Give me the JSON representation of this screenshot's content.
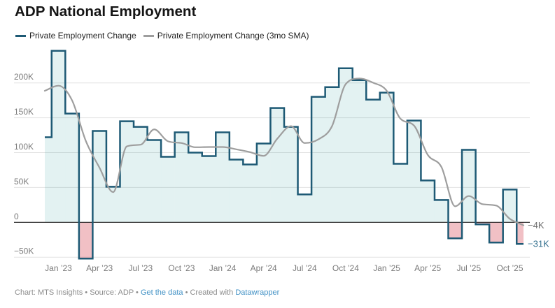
{
  "header": {
    "title": "ADP National Employment"
  },
  "legend": {
    "items": [
      {
        "label": "Private Employment Change",
        "color": "#1e5a75"
      },
      {
        "label": "Private Employment Change (3mo SMA)",
        "color": "#9e9e9e"
      }
    ]
  },
  "footer": {
    "chart_credit": "Chart: MTS Insights",
    "separator1": "•",
    "source": "Source: ADP",
    "separator2": "•",
    "get_data_link": "Get the data",
    "separator3": "•",
    "created_with": "Created with",
    "datawrapper_link": "Datawrapper"
  },
  "chart_data": {
    "type": "area",
    "subtype": "step-area with moving-average line",
    "title": "ADP National Employment",
    "unit": "thousands of jobs",
    "x": [
      "Dec '22",
      "Jan '23",
      "Feb '23",
      "Mar '23",
      "Apr '23",
      "May '23",
      "Jun '23",
      "Jul '23",
      "Aug '23",
      "Sep '23",
      "Oct '23",
      "Nov '23",
      "Dec '23",
      "Jan '24",
      "Feb '24",
      "Mar '24",
      "Apr '24",
      "May '24",
      "Jun '24",
      "Jul '24",
      "Aug '24",
      "Sep '24",
      "Oct '24",
      "Nov '24",
      "Dec '24",
      "Jan '25",
      "Feb '25",
      "Mar '25",
      "Apr '25",
      "May '25",
      "Jun '25",
      "Jul '25",
      "Aug '25",
      "Sep '25",
      "Oct '25",
      "Nov '25"
    ],
    "series": [
      {
        "name": "Private Employment Change",
        "type": "step-area",
        "color": "#1e5a75",
        "fill_positive": "rgba(30,150,150,0.125)",
        "fill_negative": "rgba(205,30,45,0.28)",
        "values": [
          122,
          246,
          156,
          -52,
          131,
          51,
          145,
          137,
          118,
          94,
          129,
          100,
          95,
          129,
          90,
          83,
          113,
          164,
          137,
          40,
          180,
          194,
          221,
          204,
          176,
          186,
          84,
          146,
          60,
          32,
          -23,
          104,
          -3,
          -29,
          47,
          -31
        ]
      },
      {
        "name": "Private Employment Change (3mo SMA)",
        "type": "line",
        "color": "#9e9e9e",
        "values": [
          188.7,
          196.0,
          174.7,
          116.7,
          78.3,
          43.3,
          109.0,
          111.3,
          133.3,
          116.3,
          113.7,
          107.7,
          108.0,
          108.0,
          104.7,
          100.7,
          95.3,
          120.0,
          138.0,
          113.7,
          119.0,
          138.0,
          198.3,
          206.3,
          200.3,
          188.7,
          148.7,
          138.7,
          96.7,
          79.3,
          23.0,
          37.7,
          26.0,
          24.0,
          5.0,
          -4.3
        ]
      }
    ],
    "y_ticks": [
      {
        "value": 200,
        "label": "200K"
      },
      {
        "value": 150,
        "label": "150K"
      },
      {
        "value": 100,
        "label": "100K"
      },
      {
        "value": 50,
        "label": "50K"
      },
      {
        "value": 0,
        "label": "0"
      },
      {
        "value": -50,
        "label": "−50K"
      }
    ],
    "x_ticks": [
      {
        "index": 1,
        "label": "Jan ’23"
      },
      {
        "index": 4,
        "label": "Apr ’23"
      },
      {
        "index": 7,
        "label": "Jul ’23"
      },
      {
        "index": 10,
        "label": "Oct ’23"
      },
      {
        "index": 13,
        "label": "Jan ’24"
      },
      {
        "index": 16,
        "label": "Apr ’24"
      },
      {
        "index": 19,
        "label": "Jul ’24"
      },
      {
        "index": 22,
        "label": "Oct ’24"
      },
      {
        "index": 25,
        "label": "Jan ’25"
      },
      {
        "index": 28,
        "label": "Apr ’25"
      },
      {
        "index": 31,
        "label": "Jul ’25"
      },
      {
        "index": 34,
        "label": "Oct ’25"
      }
    ],
    "ylim": [
      -52,
      246
    ],
    "grid": true,
    "legend_position": "top",
    "end_labels": [
      {
        "label": "−4K",
        "value": -4,
        "series": "Private Employment Change (3mo SMA)",
        "color": "#6f6f6f"
      },
      {
        "label": "−31K",
        "value": -31,
        "series": "Private Employment Change",
        "color": "#35718f"
      }
    ],
    "colors": {
      "zero_line": "#1a1a1a",
      "gridline": "#e2e2e2",
      "axis_text": "#7b7b7b"
    }
  }
}
